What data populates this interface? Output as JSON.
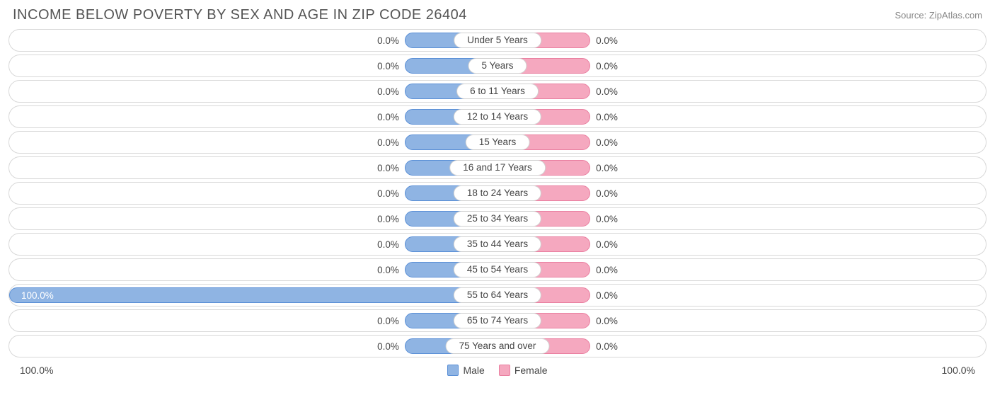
{
  "title": "INCOME BELOW POVERTY BY SEX AND AGE IN ZIP CODE 26404",
  "source": "Source: ZipAtlas.com",
  "chart": {
    "type": "divergent-bar",
    "male_color": "#8fb4e3",
    "male_border": "#5a8fd6",
    "female_color": "#f5a8bf",
    "female_border": "#e97fa0",
    "row_bg": "#ffffff",
    "row_border": "#d8d8d8",
    "text_color": "#444444",
    "min_bar_pct": 19,
    "rows": [
      {
        "label": "Under 5 Years",
        "male_pct": 0.0,
        "female_pct": 0.0,
        "male_text": "0.0%",
        "female_text": "0.0%"
      },
      {
        "label": "5 Years",
        "male_pct": 0.0,
        "female_pct": 0.0,
        "male_text": "0.0%",
        "female_text": "0.0%"
      },
      {
        "label": "6 to 11 Years",
        "male_pct": 0.0,
        "female_pct": 0.0,
        "male_text": "0.0%",
        "female_text": "0.0%"
      },
      {
        "label": "12 to 14 Years",
        "male_pct": 0.0,
        "female_pct": 0.0,
        "male_text": "0.0%",
        "female_text": "0.0%"
      },
      {
        "label": "15 Years",
        "male_pct": 0.0,
        "female_pct": 0.0,
        "male_text": "0.0%",
        "female_text": "0.0%"
      },
      {
        "label": "16 and 17 Years",
        "male_pct": 0.0,
        "female_pct": 0.0,
        "male_text": "0.0%",
        "female_text": "0.0%"
      },
      {
        "label": "18 to 24 Years",
        "male_pct": 0.0,
        "female_pct": 0.0,
        "male_text": "0.0%",
        "female_text": "0.0%"
      },
      {
        "label": "25 to 34 Years",
        "male_pct": 0.0,
        "female_pct": 0.0,
        "male_text": "0.0%",
        "female_text": "0.0%"
      },
      {
        "label": "35 to 44 Years",
        "male_pct": 0.0,
        "female_pct": 0.0,
        "male_text": "0.0%",
        "female_text": "0.0%"
      },
      {
        "label": "45 to 54 Years",
        "male_pct": 0.0,
        "female_pct": 0.0,
        "male_text": "0.0%",
        "female_text": "0.0%"
      },
      {
        "label": "55 to 64 Years",
        "male_pct": 100.0,
        "female_pct": 0.0,
        "male_text": "100.0%",
        "female_text": "0.0%"
      },
      {
        "label": "65 to 74 Years",
        "male_pct": 0.0,
        "female_pct": 0.0,
        "male_text": "0.0%",
        "female_text": "0.0%"
      },
      {
        "label": "75 Years and over",
        "male_pct": 0.0,
        "female_pct": 0.0,
        "male_text": "0.0%",
        "female_text": "0.0%"
      }
    ]
  },
  "axis": {
    "left": "100.0%",
    "right": "100.0%"
  },
  "legend": {
    "male": "Male",
    "female": "Female"
  }
}
